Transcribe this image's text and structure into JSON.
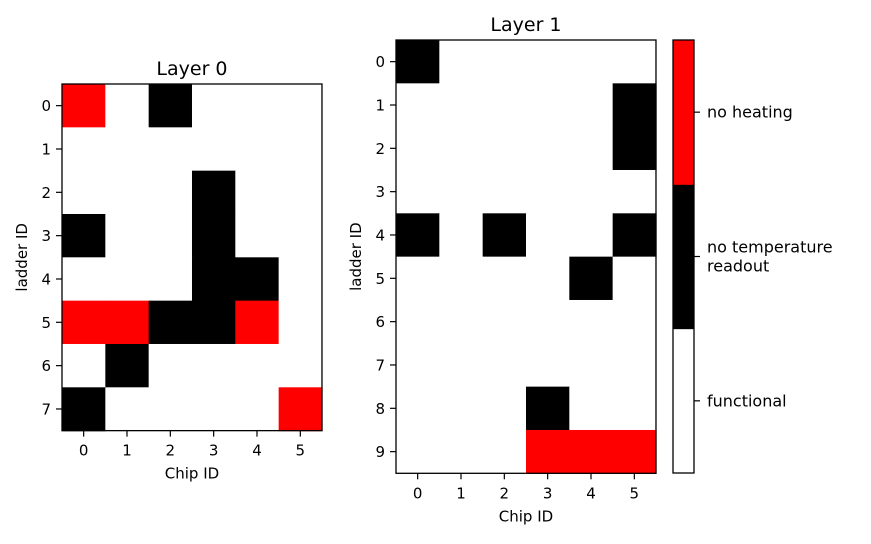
{
  "colors": {
    "functional": "#ffffff",
    "no_temperature_readout": "#000000",
    "no_heating": "#ff0000",
    "axis": "#000000"
  },
  "chart_data": [
    {
      "type": "heatmap",
      "title": "Layer 0",
      "xlabel": "Chip ID",
      "ylabel": "ladder ID",
      "x_ticks": [
        "0",
        "1",
        "2",
        "3",
        "4",
        "5"
      ],
      "y_ticks": [
        "0",
        "1",
        "2",
        "3",
        "4",
        "5",
        "6",
        "7"
      ],
      "value_legend": {
        "0": "functional",
        "1": "no temperature readout",
        "2": "no heating"
      },
      "values": [
        [
          2,
          0,
          1,
          0,
          0,
          0
        ],
        [
          0,
          0,
          0,
          0,
          0,
          0
        ],
        [
          0,
          0,
          0,
          1,
          0,
          0
        ],
        [
          1,
          0,
          0,
          1,
          0,
          0
        ],
        [
          0,
          0,
          0,
          1,
          1,
          0
        ],
        [
          2,
          2,
          1,
          1,
          2,
          0
        ],
        [
          0,
          1,
          0,
          0,
          0,
          0
        ],
        [
          1,
          0,
          0,
          0,
          0,
          2
        ]
      ]
    },
    {
      "type": "heatmap",
      "title": "Layer 1",
      "xlabel": "Chip ID",
      "ylabel": "ladder ID",
      "x_ticks": [
        "0",
        "1",
        "2",
        "3",
        "4",
        "5"
      ],
      "y_ticks": [
        "0",
        "1",
        "2",
        "3",
        "4",
        "5",
        "6",
        "7",
        "8",
        "9"
      ],
      "value_legend": {
        "0": "functional",
        "1": "no temperature readout",
        "2": "no heating"
      },
      "values": [
        [
          1,
          0,
          0,
          0,
          0,
          0
        ],
        [
          0,
          0,
          0,
          0,
          0,
          1
        ],
        [
          0,
          0,
          0,
          0,
          0,
          1
        ],
        [
          0,
          0,
          0,
          0,
          0,
          0
        ],
        [
          1,
          0,
          1,
          0,
          0,
          1
        ],
        [
          0,
          0,
          0,
          0,
          1,
          0
        ],
        [
          0,
          0,
          0,
          0,
          0,
          0
        ],
        [
          0,
          0,
          0,
          0,
          0,
          0
        ],
        [
          0,
          0,
          0,
          1,
          0,
          0
        ],
        [
          0,
          0,
          0,
          2,
          2,
          2
        ]
      ]
    }
  ],
  "colorbar": {
    "order_bottom_to_top": [
      "functional",
      "no_temperature_readout",
      "no_heating"
    ],
    "labels": {
      "no_heating": [
        "no heating"
      ],
      "no_temperature_readout": [
        "no temperature",
        "readout"
      ],
      "functional": [
        "functional"
      ]
    }
  }
}
